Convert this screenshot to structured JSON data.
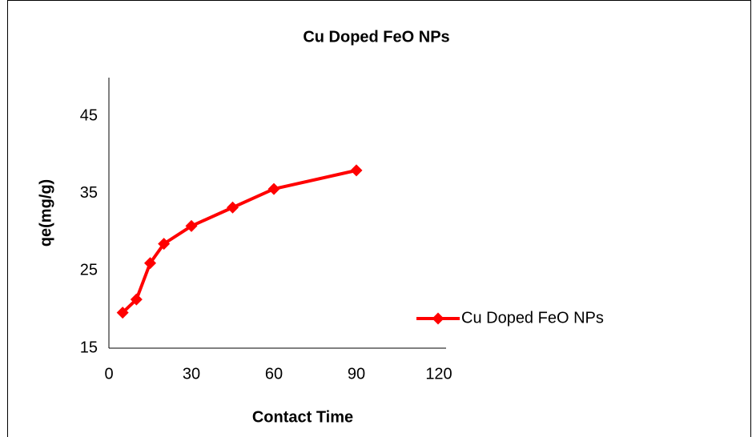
{
  "chart_data": {
    "type": "line",
    "title": "Cu Doped  FeO NPs",
    "x_label": "Contact Time",
    "y_label": "qe(mg/g)",
    "x": [
      5,
      10,
      15,
      20,
      30,
      45,
      60,
      90
    ],
    "series": [
      {
        "name": "Cu Doped  FeO NPs",
        "color": "#ff0000",
        "values": [
          19.6,
          21.3,
          26.0,
          28.5,
          30.8,
          33.2,
          35.6,
          38.0
        ]
      }
    ],
    "xlim": [
      0,
      120
    ],
    "xticks": [
      0,
      30,
      60,
      90,
      120
    ],
    "ylim": [
      15,
      50
    ],
    "yticks": [
      15,
      25,
      35,
      45
    ],
    "grid": false,
    "legend": "right",
    "marker": "diamond"
  }
}
